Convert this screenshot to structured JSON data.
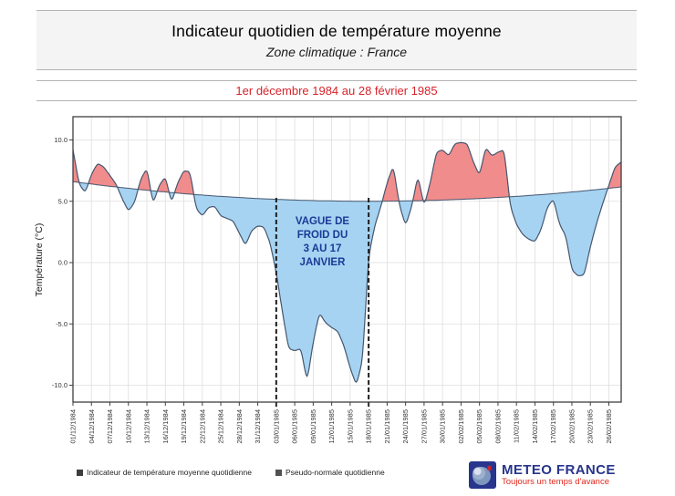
{
  "header": {
    "title": "Indicateur quotidien de température moyenne",
    "subtitle": "Zone climatique : France",
    "period": "1er décembre 1984 au 28 février 1985",
    "period_color": "#d8232a"
  },
  "chart_data": {
    "type": "area",
    "title": "Indicateur quotidien de température moyenne",
    "xlabel": "",
    "ylabel": "Température (°C)",
    "ylim": [
      -11.4,
      11.9
    ],
    "yticks": [
      10.0,
      5.0,
      0.0,
      -5.0,
      -10.0
    ],
    "ytick_labels": [
      "10.0",
      "5.0",
      "0.0",
      "-5.0",
      "-10.0"
    ],
    "grid": true,
    "x_tick_interval_days": 3,
    "x_tick_labels": [
      "01/12/1984",
      "04/12/1984",
      "07/12/1984",
      "10/12/1984",
      "13/12/1984",
      "16/12/1984",
      "19/12/1984",
      "22/12/1984",
      "25/12/1984",
      "28/12/1984",
      "31/12/1984",
      "03/01/1985",
      "06/01/1985",
      "09/01/1985",
      "12/01/1985",
      "15/01/1985",
      "18/01/1985",
      "21/01/1985",
      "24/01/1985",
      "27/01/1985",
      "30/01/1985",
      "02/02/1985",
      "05/02/1985",
      "08/02/1985",
      "11/02/1985",
      "14/02/1985",
      "17/02/1985",
      "20/02/1985",
      "23/02/1985",
      "26/02/1985"
    ],
    "series": [
      {
        "name": "Indicateur de température moyenne quotidienne",
        "values": [
          9.2,
          6.4,
          5.7,
          7.2,
          8.1,
          7.8,
          7.1,
          6.4,
          5.2,
          4.2,
          4.9,
          6.8,
          7.7,
          4.8,
          6.3,
          7.0,
          4.9,
          6.5,
          7.5,
          7.4,
          4.4,
          3.8,
          4.5,
          4.6,
          3.8,
          3.6,
          3.4,
          2.4,
          1.4,
          2.6,
          3.0,
          2.9,
          1.6,
          -0.8,
          -4.0,
          -7.0,
          -7.2,
          -7.0,
          -9.7,
          -6.5,
          -4.1,
          -4.9,
          -5.3,
          -5.6,
          -6.8,
          -8.6,
          -10.0,
          -8.0,
          0.5,
          3.0,
          4.6,
          6.5,
          7.9,
          4.7,
          3.0,
          4.6,
          7.1,
          4.6,
          6.5,
          9.0,
          9.2,
          8.7,
          9.7,
          9.8,
          9.7,
          8.2,
          7.1,
          9.4,
          8.7,
          9.0,
          9.2,
          4.6,
          3.1,
          2.3,
          1.9,
          1.7,
          2.7,
          4.5,
          5.2,
          3.1,
          2.2,
          -0.6,
          -1.1,
          -1.0,
          1.3,
          3.2,
          4.8,
          6.3,
          7.8,
          8.2
        ]
      },
      {
        "name": "Pseudo-normale quotidienne",
        "values": [
          6.6,
          6.53,
          6.47,
          6.41,
          6.34,
          6.28,
          6.22,
          6.17,
          6.11,
          6.06,
          6.0,
          5.95,
          5.9,
          5.85,
          5.8,
          5.76,
          5.71,
          5.67,
          5.62,
          5.58,
          5.54,
          5.51,
          5.47,
          5.43,
          5.4,
          5.37,
          5.34,
          5.31,
          5.28,
          5.25,
          5.22,
          5.2,
          5.18,
          5.16,
          5.14,
          5.12,
          5.1,
          5.08,
          5.07,
          5.06,
          5.04,
          5.03,
          5.03,
          5.02,
          5.01,
          5.01,
          5.0,
          5.0,
          5.0,
          5.0,
          5.0,
          5.01,
          5.01,
          5.02,
          5.03,
          5.03,
          5.04,
          5.06,
          5.07,
          5.08,
          5.1,
          5.12,
          5.14,
          5.16,
          5.18,
          5.2,
          5.22,
          5.25,
          5.28,
          5.31,
          5.34,
          5.37,
          5.4,
          5.43,
          5.47,
          5.51,
          5.54,
          5.58,
          5.62,
          5.67,
          5.71,
          5.76,
          5.8,
          5.85,
          5.9,
          5.95,
          6.0,
          6.06,
          6.11,
          6.17
        ]
      }
    ],
    "colors": {
      "above_normal_fill": "#f18c8c",
      "below_normal_fill": "#a6d3f2",
      "line_stroke": "#45566e",
      "normal_stroke": "#45566e",
      "grid": "#dedede",
      "plot_border": "#3f3f3f",
      "dashed_marker": "#1d1d1d"
    },
    "annotation": {
      "lines": [
        "VAGUE DE",
        "FROID DU",
        "3 AU 17",
        "JANVIER"
      ],
      "color": "#1b3a96",
      "marker_start_day_index": 33,
      "marker_end_day_index": 48
    },
    "legend_position": "bottom"
  },
  "legend": {
    "items": [
      {
        "label": "Indicateur de température moyenne quotidienne"
      },
      {
        "label": "Pseudo-normale quotidienne"
      }
    ]
  },
  "logo": {
    "name": "METEO FRANCE",
    "tagline": "Toujours un temps d'avance",
    "brand_blue": "#27358c",
    "brand_red": "#e2261c"
  }
}
